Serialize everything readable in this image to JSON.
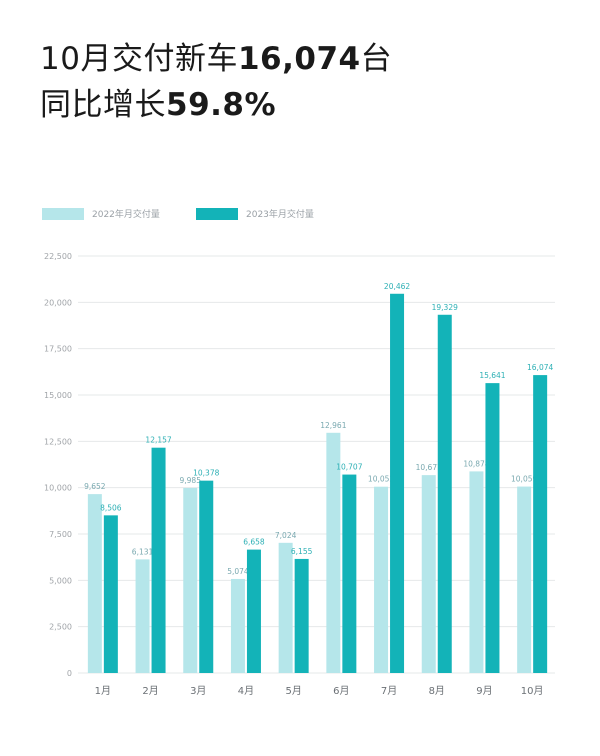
{
  "headline": {
    "line1_prefix": "10月交付新车",
    "line1_value": "16,074",
    "line1_suffix": "台",
    "line2_prefix": "同比增长",
    "line2_value": "59.8%"
  },
  "colors": {
    "series_2022": "#b5e6ea",
    "series_2023": "#13b3b8",
    "grid": "#e6e8ea"
  },
  "chart_data": {
    "type": "bar",
    "categories": [
      "1月",
      "2月",
      "3月",
      "4月",
      "5月",
      "6月",
      "7月",
      "8月",
      "9月",
      "10月"
    ],
    "series": [
      {
        "name": "2022年月交付量",
        "values": [
          9652,
          6131,
          9985,
          5074,
          7024,
          12961,
          10052,
          10677,
          10878,
          10059
        ],
        "labels": [
          "9,652",
          "6,131",
          "9,985",
          "5,074",
          "7,024",
          "12,961",
          "10,052",
          "10,677",
          "10,878",
          "10,059"
        ]
      },
      {
        "name": "2023年月交付量",
        "values": [
          8506,
          12157,
          10378,
          6658,
          6155,
          10707,
          20462,
          19329,
          15641,
          16074
        ],
        "labels": [
          "8,506",
          "12,157",
          "10,378",
          "6,658",
          "6,155",
          "10,707",
          "20,462",
          "19,329",
          "15,641",
          "16,074"
        ]
      }
    ],
    "yticks": [
      "0",
      "2,500",
      "5,000",
      "7,500",
      "10,000",
      "12,500",
      "15,000",
      "17,500",
      "20,000",
      "22,500"
    ],
    "ylim": [
      0,
      22500
    ],
    "grid": true,
    "legend": "top-left"
  }
}
